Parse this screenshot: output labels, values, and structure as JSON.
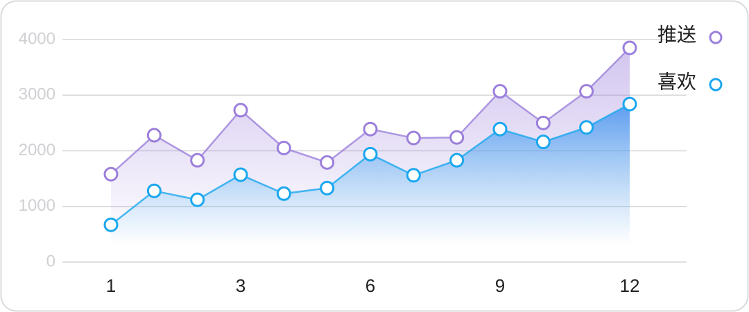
{
  "chart_data": {
    "type": "line",
    "categories": [
      "1",
      null,
      null,
      "3",
      null,
      null,
      "6",
      null,
      null,
      "9",
      null,
      null,
      "12"
    ],
    "series": [
      {
        "name": "推送",
        "color": "#9b7fdb",
        "values": [
          1580,
          2280,
          1830,
          2730,
          2050,
          1790,
          2390,
          2230,
          2240,
          3070,
          2500,
          3070,
          3850
        ]
      },
      {
        "name": "喜欢",
        "color": "#1aa7ee",
        "values": [
          670,
          1280,
          1120,
          1570,
          1230,
          1330,
          1940,
          1560,
          1830,
          2390,
          2160,
          2420,
          2840
        ]
      }
    ],
    "ylim": [
      0,
      4000
    ],
    "yticks": [
      0,
      1000,
      2000,
      3000,
      4000
    ],
    "grid": true,
    "legend": "top-right"
  }
}
